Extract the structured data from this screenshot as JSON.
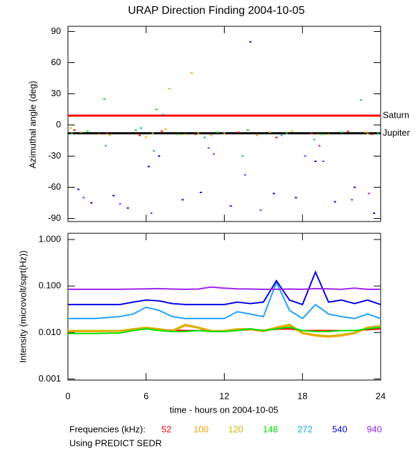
{
  "chart_data": [
    {
      "type": "scatter",
      "title": "URAP Direction Finding  2004-10-05",
      "ylabel": "Azimuthal angle (deg)",
      "xlim": [
        0,
        24
      ],
      "ylim": [
        -93,
        95
      ],
      "yticks": [
        -90,
        -60,
        -30,
        0,
        30,
        60,
        90
      ],
      "annotations": [
        {
          "label": "Saturn",
          "value": 9,
          "color": "#ff0000"
        },
        {
          "label": "Jupiter",
          "value": -8,
          "color": "#000000"
        }
      ],
      "series": [
        {
          "name": "52",
          "color": "#ff0000",
          "x": [
            0.5,
            3.0,
            5.5,
            7.2,
            9.8,
            13.1,
            16.0,
            18.7,
            21.5,
            23.3
          ],
          "values": [
            -5,
            -8,
            -10,
            -6,
            -9,
            -7,
            -12,
            -8,
            -6,
            -9
          ]
        },
        {
          "name": "100",
          "color": "#ffa000",
          "x": [
            0.2,
            2.4,
            6.0,
            7.5,
            9.5,
            12.0,
            14.5,
            17.2,
            20.0,
            22.8
          ],
          "values": [
            -3,
            -9,
            -12,
            -4,
            50,
            -8,
            -10,
            -6,
            -9,
            -7
          ]
        },
        {
          "name": "120",
          "color": "#d4b400",
          "x": [
            1.0,
            3.2,
            6.5,
            7.8,
            9.0,
            10.0,
            11.0,
            15.5,
            19.2,
            23.0
          ],
          "values": [
            -7,
            -10,
            -8,
            35,
            -9,
            -8,
            -10,
            -7,
            -9,
            -8
          ]
        },
        {
          "name": "148",
          "color": "#00e000",
          "x": [
            0.3,
            1.5,
            2.8,
            5.2,
            6.8,
            8.5,
            11.5,
            13.8,
            16.8,
            19.5,
            21.0,
            23.8
          ],
          "values": [
            -8,
            -6,
            25,
            -5,
            15,
            -9,
            -7,
            -5,
            -8,
            -9,
            -7,
            -8
          ]
        },
        {
          "name": "272",
          "color": "#1ea0ff",
          "x": [
            2.9,
            5.6,
            6.6,
            7.3,
            10.5,
            13.4,
            16.4,
            18.9,
            22.5
          ],
          "values": [
            -20,
            -3,
            -25,
            10,
            -12,
            -30,
            -10,
            -14,
            24
          ]
        },
        {
          "name": "540",
          "color": "#0000e0",
          "x": [
            0.8,
            1.8,
            3.5,
            4.6,
            6.2,
            7.0,
            8.8,
            10.2,
            12.5,
            14.0,
            15.8,
            17.5,
            19.0,
            20.5,
            22.0,
            23.5
          ],
          "values": [
            -62,
            -75,
            -68,
            -80,
            -40,
            -30,
            -72,
            -65,
            -78,
            80,
            -66,
            -70,
            -35,
            -74,
            -60,
            -85
          ]
        },
        {
          "name": "940",
          "color": "#a020f0",
          "x": [
            1.2,
            4.0,
            6.4,
            10.8,
            11.2,
            13.6,
            14.8,
            18.2,
            19.3,
            19.6,
            21.8,
            23.1
          ],
          "values": [
            -70,
            -76,
            -85,
            -22,
            -28,
            -48,
            -82,
            -30,
            -20,
            -35,
            -72,
            -66
          ]
        }
      ]
    },
    {
      "type": "line",
      "xlabel": "time - hours on 2004-10-05",
      "ylabel": "Intensity (microvolt/sqrt(Hz))",
      "xlim": [
        0,
        24
      ],
      "xticks": [
        0,
        6,
        12,
        18,
        24
      ],
      "log_scale": true,
      "ylim": [
        0.00095,
        1.36
      ],
      "yticks": [
        {
          "value": 0.001,
          "label": "0.001"
        },
        {
          "value": 0.01,
          "label": "0.010"
        },
        {
          "value": 0.1,
          "label": "0.100"
        },
        {
          "value": 1,
          "label": "1.000"
        }
      ],
      "x": [
        0,
        1,
        2,
        3,
        4,
        5,
        6,
        7,
        8,
        9,
        10,
        11,
        12,
        13,
        14,
        15,
        16,
        17,
        18,
        19,
        20,
        21,
        22,
        23,
        24
      ],
      "series": [
        {
          "name": "52",
          "color": "#ff0000",
          "values": [
            0.011,
            0.011,
            0.011,
            0.011,
            0.011,
            0.0115,
            0.012,
            0.0118,
            0.0112,
            0.011,
            0.011,
            0.011,
            0.011,
            0.0112,
            0.0115,
            0.0112,
            0.0118,
            0.012,
            0.011,
            0.011,
            0.011,
            0.011,
            0.011,
            0.0115,
            0.012
          ]
        },
        {
          "name": "100",
          "color": "#ffa000",
          "values": [
            0.0105,
            0.0105,
            0.0105,
            0.0106,
            0.0107,
            0.0115,
            0.0125,
            0.0115,
            0.0105,
            0.014,
            0.0125,
            0.0105,
            0.0105,
            0.0115,
            0.0115,
            0.0105,
            0.0125,
            0.014,
            0.0095,
            0.0085,
            0.008,
            0.0085,
            0.0095,
            0.0125,
            0.013
          ]
        },
        {
          "name": "120",
          "color": "#d4b400",
          "values": [
            0.011,
            0.011,
            0.011,
            0.011,
            0.011,
            0.012,
            0.013,
            0.012,
            0.011,
            0.015,
            0.013,
            0.011,
            0.011,
            0.012,
            0.012,
            0.011,
            0.013,
            0.015,
            0.01,
            0.009,
            0.0085,
            0.009,
            0.01,
            0.013,
            0.014
          ]
        },
        {
          "name": "148",
          "color": "#00e000",
          "values": [
            0.0095,
            0.0095,
            0.0095,
            0.0097,
            0.0098,
            0.011,
            0.012,
            0.011,
            0.0105,
            0.0105,
            0.011,
            0.0105,
            0.0105,
            0.011,
            0.012,
            0.011,
            0.012,
            0.013,
            0.011,
            0.0105,
            0.0105,
            0.011,
            0.011,
            0.012,
            0.013
          ]
        },
        {
          "name": "272",
          "color": "#1ea0ff",
          "values": [
            0.02,
            0.02,
            0.02,
            0.021,
            0.022,
            0.025,
            0.035,
            0.03,
            0.022,
            0.02,
            0.02,
            0.02,
            0.02,
            0.028,
            0.025,
            0.022,
            0.12,
            0.03,
            0.02,
            0.04,
            0.025,
            0.022,
            0.02,
            0.025,
            0.02
          ]
        },
        {
          "name": "540",
          "color": "#0000e0",
          "values": [
            0.04,
            0.04,
            0.04,
            0.04,
            0.04,
            0.045,
            0.05,
            0.048,
            0.042,
            0.04,
            0.04,
            0.04,
            0.04,
            0.045,
            0.042,
            0.045,
            0.13,
            0.05,
            0.04,
            0.2,
            0.045,
            0.05,
            0.042,
            0.05,
            0.04
          ]
        },
        {
          "name": "940",
          "color": "#a020f0",
          "values": [
            0.085,
            0.085,
            0.085,
            0.085,
            0.085,
            0.086,
            0.087,
            0.088,
            0.086,
            0.085,
            0.086,
            0.095,
            0.09,
            0.087,
            0.086,
            0.085,
            0.085,
            0.086,
            0.085,
            0.088,
            0.087,
            0.085,
            0.09,
            0.085,
            0.085
          ]
        }
      ]
    }
  ],
  "footer": {
    "legend_title": "Frequencies (kHz):",
    "note": "Using PREDICT SEDR"
  }
}
